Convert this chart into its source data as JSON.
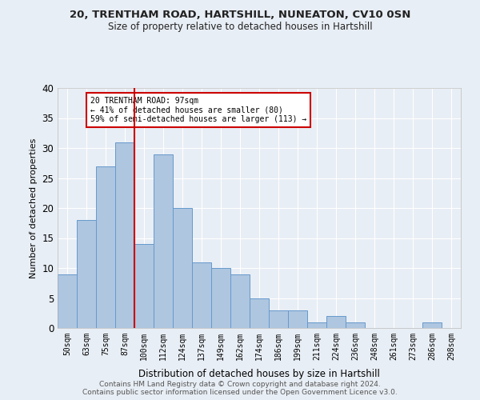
{
  "title1": "20, TRENTHAM ROAD, HARTSHILL, NUNEATON, CV10 0SN",
  "title2": "Size of property relative to detached houses in Hartshill",
  "xlabel": "Distribution of detached houses by size in Hartshill",
  "ylabel": "Number of detached properties",
  "categories": [
    "50sqm",
    "63sqm",
    "75sqm",
    "87sqm",
    "100sqm",
    "112sqm",
    "124sqm",
    "137sqm",
    "149sqm",
    "162sqm",
    "174sqm",
    "186sqm",
    "199sqm",
    "211sqm",
    "224sqm",
    "236sqm",
    "248sqm",
    "261sqm",
    "273sqm",
    "286sqm",
    "298sqm"
  ],
  "values": [
    9,
    18,
    27,
    31,
    14,
    29,
    20,
    11,
    10,
    9,
    5,
    3,
    3,
    1,
    2,
    1,
    0,
    0,
    0,
    1,
    0
  ],
  "bar_color": "#aec6e0",
  "bar_edge_color": "#6699cc",
  "vline_color": "#cc0000",
  "annotation_text": "20 TRENTHAM ROAD: 97sqm\n← 41% of detached houses are smaller (80)\n59% of semi-detached houses are larger (113) →",
  "annotation_box_color": "#ffffff",
  "annotation_box_edge": "#cc0000",
  "ylim": [
    0,
    40
  ],
  "yticks": [
    0,
    5,
    10,
    15,
    20,
    25,
    30,
    35,
    40
  ],
  "footer1": "Contains HM Land Registry data © Crown copyright and database right 2024.",
  "footer2": "Contains public sector information licensed under the Open Government Licence v3.0.",
  "bg_color": "#e8eef5",
  "grid_color": "#ffffff"
}
